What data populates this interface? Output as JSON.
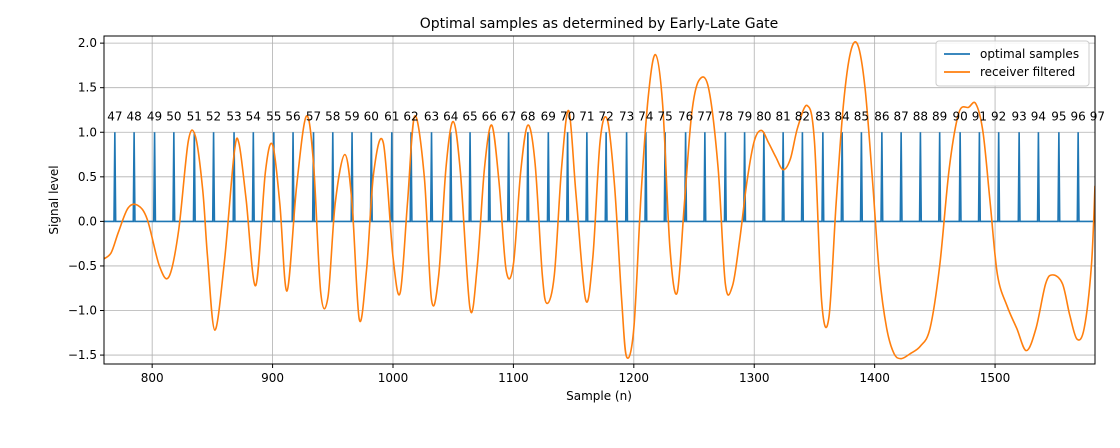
{
  "chart_data": {
    "type": "line",
    "title": "Optimal samples as determined by Early-Late Gate",
    "xlabel": "Sample (n)",
    "ylabel": "Signal level",
    "xlim": [
      760,
      1583
    ],
    "ylim": [
      -1.6,
      2.08
    ],
    "xticks": [
      800,
      900,
      1000,
      1100,
      1200,
      1300,
      1400,
      1500
    ],
    "yticks": [
      -1.5,
      -1.0,
      -0.5,
      0.0,
      0.5,
      1.0,
      1.5,
      2.0
    ],
    "ytick_labels": [
      "−1.5",
      "−1.0",
      "−0.5",
      "0.0",
      "0.5",
      "1.0",
      "1.5",
      "2.0"
    ],
    "grid": true,
    "legend_position": "top-right",
    "series": [
      {
        "name": "optimal samples",
        "color": "#1f77b4",
        "kind": "impulses",
        "baseline": 0.0,
        "impulse_height": 1.0,
        "impulse_x": [
          769,
          785,
          802,
          818,
          835,
          851,
          868,
          884,
          901,
          917,
          934,
          950,
          966,
          982,
          999,
          1015,
          1032,
          1048,
          1064,
          1080,
          1096,
          1112,
          1129,
          1145,
          1161,
          1177,
          1194,
          1210,
          1226,
          1243,
          1259,
          1276,
          1292,
          1308,
          1324,
          1340,
          1357,
          1373,
          1389,
          1406,
          1422,
          1438,
          1454,
          1471,
          1487,
          1503,
          1520,
          1536,
          1553,
          1569,
          1585
        ]
      },
      {
        "name": "receiver filtered",
        "color": "#ff7f0e",
        "kind": "line",
        "x": [
          760,
          766,
          772,
          780,
          788,
          796,
          806,
          814,
          822,
          830,
          836,
          842,
          846,
          852,
          860,
          868,
          872,
          878,
          886,
          894,
          900,
          906,
          912,
          920,
          928,
          934,
          940,
          946,
          952,
          960,
          966,
          972,
          978,
          984,
          992,
          1000,
          1006,
          1012,
          1018,
          1026,
          1032,
          1038,
          1044,
          1050,
          1056,
          1064,
          1070,
          1076,
          1082,
          1088,
          1094,
          1100,
          1106,
          1112,
          1118,
          1124,
          1128,
          1134,
          1140,
          1146,
          1152,
          1160,
          1166,
          1172,
          1178,
          1184,
          1190,
          1194,
          1200,
          1206,
          1212,
          1218,
          1224,
          1230,
          1236,
          1242,
          1248,
          1254,
          1262,
          1270,
          1276,
          1282,
          1288,
          1294,
          1300,
          1306,
          1312,
          1318,
          1324,
          1330,
          1336,
          1344,
          1350,
          1356,
          1362,
          1368,
          1374,
          1380,
          1386,
          1392,
          1398,
          1404,
          1410,
          1416,
          1422,
          1430,
          1438,
          1446,
          1454,
          1462,
          1470,
          1478,
          1484,
          1490,
          1496,
          1502,
          1510,
          1518,
          1526,
          1534,
          1542,
          1548,
          1556,
          1562,
          1568,
          1574,
          1580,
          1583
        ],
        "y": [
          -0.42,
          -0.35,
          -0.12,
          0.15,
          0.18,
          0.02,
          -0.5,
          -0.62,
          -0.1,
          0.9,
          0.95,
          0.35,
          -0.4,
          -1.22,
          -0.45,
          0.75,
          0.88,
          0.25,
          -0.72,
          0.55,
          0.86,
          0.2,
          -0.78,
          0.4,
          1.18,
          0.65,
          -0.8,
          -0.85,
          0.2,
          0.75,
          0.2,
          -1.1,
          -0.55,
          0.55,
          0.88,
          -0.4,
          -0.8,
          0.2,
          1.18,
          0.5,
          -0.88,
          -0.6,
          0.6,
          1.12,
          0.55,
          -0.98,
          -0.5,
          0.6,
          1.08,
          0.45,
          -0.55,
          -0.48,
          0.55,
          1.08,
          0.65,
          -0.6,
          -0.92,
          -0.6,
          0.6,
          1.24,
          0.3,
          -0.88,
          -0.4,
          0.9,
          1.14,
          0.4,
          -0.9,
          -1.52,
          -1.2,
          0.3,
          1.4,
          1.87,
          1.3,
          -0.3,
          -0.8,
          0.2,
          1.2,
          1.58,
          1.5,
          0.6,
          -0.7,
          -0.72,
          -0.2,
          0.45,
          0.9,
          1.02,
          0.88,
          0.72,
          0.58,
          0.7,
          1.05,
          1.3,
          0.9,
          -0.9,
          -1.08,
          0.2,
          1.3,
          1.9,
          1.98,
          1.5,
          0.5,
          -0.6,
          -1.2,
          -1.48,
          -1.54,
          -1.48,
          -1.4,
          -1.2,
          -0.5,
          0.6,
          1.22,
          1.28,
          1.32,
          1.0,
          0.2,
          -0.6,
          -0.95,
          -1.2,
          -1.45,
          -1.2,
          -0.7,
          -0.6,
          -0.7,
          -1.05,
          -1.32,
          -1.2,
          -0.5,
          0.4
        ],
        "peak_labels": [
          {
            "x": 769,
            "label": "47"
          },
          {
            "x": 785,
            "label": "48"
          },
          {
            "x": 802,
            "label": "49"
          },
          {
            "x": 818,
            "label": "50"
          },
          {
            "x": 835,
            "label": "51"
          },
          {
            "x": 851,
            "label": "52"
          },
          {
            "x": 868,
            "label": "53"
          },
          {
            "x": 884,
            "label": "54"
          },
          {
            "x": 901,
            "label": "55"
          },
          {
            "x": 917,
            "label": "56"
          },
          {
            "x": 934,
            "label": "57"
          },
          {
            "x": 950,
            "label": "58"
          },
          {
            "x": 966,
            "label": "59"
          },
          {
            "x": 982,
            "label": "60"
          },
          {
            "x": 999,
            "label": "61"
          },
          {
            "x": 1015,
            "label": "62"
          },
          {
            "x": 1032,
            "label": "63"
          },
          {
            "x": 1048,
            "label": "64"
          },
          {
            "x": 1064,
            "label": "65"
          },
          {
            "x": 1080,
            "label": "66"
          },
          {
            "x": 1096,
            "label": "67"
          },
          {
            "x": 1112,
            "label": "68"
          },
          {
            "x": 1129,
            "label": "69"
          },
          {
            "x": 1145,
            "label": "70"
          },
          {
            "x": 1161,
            "label": "71"
          },
          {
            "x": 1177,
            "label": "72"
          },
          {
            "x": 1194,
            "label": "73"
          },
          {
            "x": 1210,
            "label": "74"
          },
          {
            "x": 1226,
            "label": "75"
          },
          {
            "x": 1243,
            "label": "76"
          },
          {
            "x": 1259,
            "label": "77"
          },
          {
            "x": 1276,
            "label": "78"
          },
          {
            "x": 1292,
            "label": "79"
          },
          {
            "x": 1308,
            "label": "80"
          },
          {
            "x": 1324,
            "label": "81"
          },
          {
            "x": 1340,
            "label": "82"
          },
          {
            "x": 1357,
            "label": "83"
          },
          {
            "x": 1373,
            "label": "84"
          },
          {
            "x": 1389,
            "label": "85"
          },
          {
            "x": 1406,
            "label": "86"
          },
          {
            "x": 1422,
            "label": "87"
          },
          {
            "x": 1438,
            "label": "88"
          },
          {
            "x": 1454,
            "label": "89"
          },
          {
            "x": 1471,
            "label": "90"
          },
          {
            "x": 1487,
            "label": "91"
          },
          {
            "x": 1503,
            "label": "92"
          },
          {
            "x": 1520,
            "label": "93"
          },
          {
            "x": 1536,
            "label": "94"
          },
          {
            "x": 1553,
            "label": "95"
          },
          {
            "x": 1569,
            "label": "96"
          },
          {
            "x": 1585,
            "label": "97"
          }
        ]
      }
    ]
  }
}
